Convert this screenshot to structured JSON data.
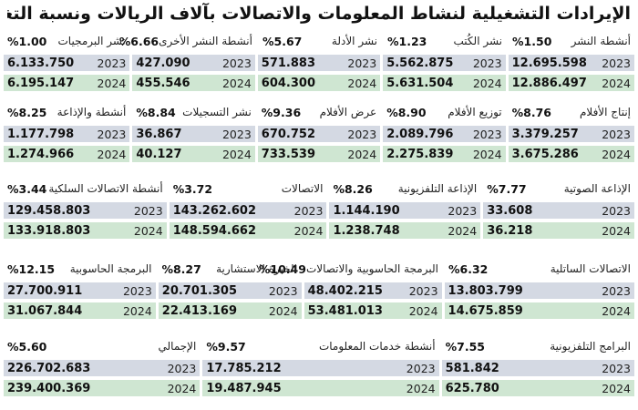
{
  "title": "الإيرادات التشغيلية لنشاط المعلومات والاتصالات بآلاف الريالات ونسبة التغيير السنوي:",
  "years": {
    "y2023": "2023",
    "y2024": "2024"
  },
  "colors": {
    "row_2023": "#d4d9e3",
    "row_2024": "#cfe6d2"
  },
  "groups": [
    {
      "cells": [
        {
          "name": "أنشطة النشر",
          "pct": "%1.50",
          "v2023": "12.695.598",
          "v2024": "12.886.497"
        },
        {
          "name": "نشر الكُتب",
          "pct": "%1.23",
          "v2023": "5.562.875",
          "v2024": "5.631.504"
        },
        {
          "name": "نشر الأدلة",
          "pct": "%5.67",
          "v2023": "571.883",
          "v2024": "604.300"
        },
        {
          "name": "أنشطة النشر الأخرى",
          "pct": "%6.66",
          "v2023": "427.090",
          "v2024": "455.546"
        },
        {
          "name": "نشر البرمجيات",
          "pct": "%1.00",
          "v2023": "6.133.750",
          "v2024": "6.195.147"
        }
      ]
    },
    {
      "cells": [
        {
          "name": "إنتاج الأفلام",
          "pct": "%8.76",
          "v2023": "3.379.257",
          "v2024": "3.675.286"
        },
        {
          "name": "توزيع الأفلام",
          "pct": "%8.90",
          "v2023": "2.089.796",
          "v2024": "2.275.839"
        },
        {
          "name": "عرض الأفلام",
          "pct": "%9.36",
          "v2023": "670.752",
          "v2024": "733.539"
        },
        {
          "name": "نشر التسجيلات",
          "pct": "%8.84",
          "v2023": "36.867",
          "v2024": "40.127"
        },
        {
          "name": "أنشطة والإذاعة",
          "pct": "%8.25",
          "v2023": "1.177.798",
          "v2024": "1.274.966"
        }
      ]
    },
    {
      "cells": [
        {
          "name": "الإذاعة الصوتية",
          "pct": "%7.77",
          "v2023": "33.608",
          "v2024": "36.218"
        },
        {
          "name": "الإذاعة التلفزيونية",
          "pct": "%8.26",
          "v2023": "1.144.190",
          "v2024": "1.238.748"
        },
        {
          "name": "الاتصالات",
          "pct": "%3.72",
          "v2023": "143.262.602",
          "v2024": "148.594.662"
        },
        {
          "name": "أنشطة الاتصالات السلكية",
          "pct": "%3.44",
          "v2023": "129.458.803",
          "v2024": "133.918.803"
        }
      ]
    },
    {
      "cells": [
        {
          "name": "الاتصالات الساتلية",
          "pct": "%6.32",
          "v2023": "13.803.799",
          "v2024": "14.675.859"
        },
        {
          "name": "البرمجة الحاسوبية والاتصالات",
          "pct": "%10.49",
          "v2023": "48.402.215",
          "v2024": "53.481.013"
        },
        {
          "name": "الخبرة الاستشارية",
          "pct": "%8.27",
          "v2023": "20.701.305",
          "v2024": "22.413.169"
        },
        {
          "name": "البرمجة الحاسوبية",
          "pct": "%12.15",
          "v2023": "27.700.911",
          "v2024": "31.067.844"
        }
      ]
    },
    {
      "cells": [
        {
          "name": "البرامج التلفزيونية",
          "pct": "%7.55",
          "v2023": "581.842",
          "v2024": "625.780"
        },
        {
          "name": "أنشطة خدمات المعلومات",
          "pct": "%9.57",
          "v2023": "17.785.212",
          "v2024": "19.487.945"
        },
        {
          "name": "الإجمالي",
          "pct": "%5.60",
          "v2023": "226.702.683",
          "v2024": "239.400.369"
        }
      ]
    }
  ]
}
